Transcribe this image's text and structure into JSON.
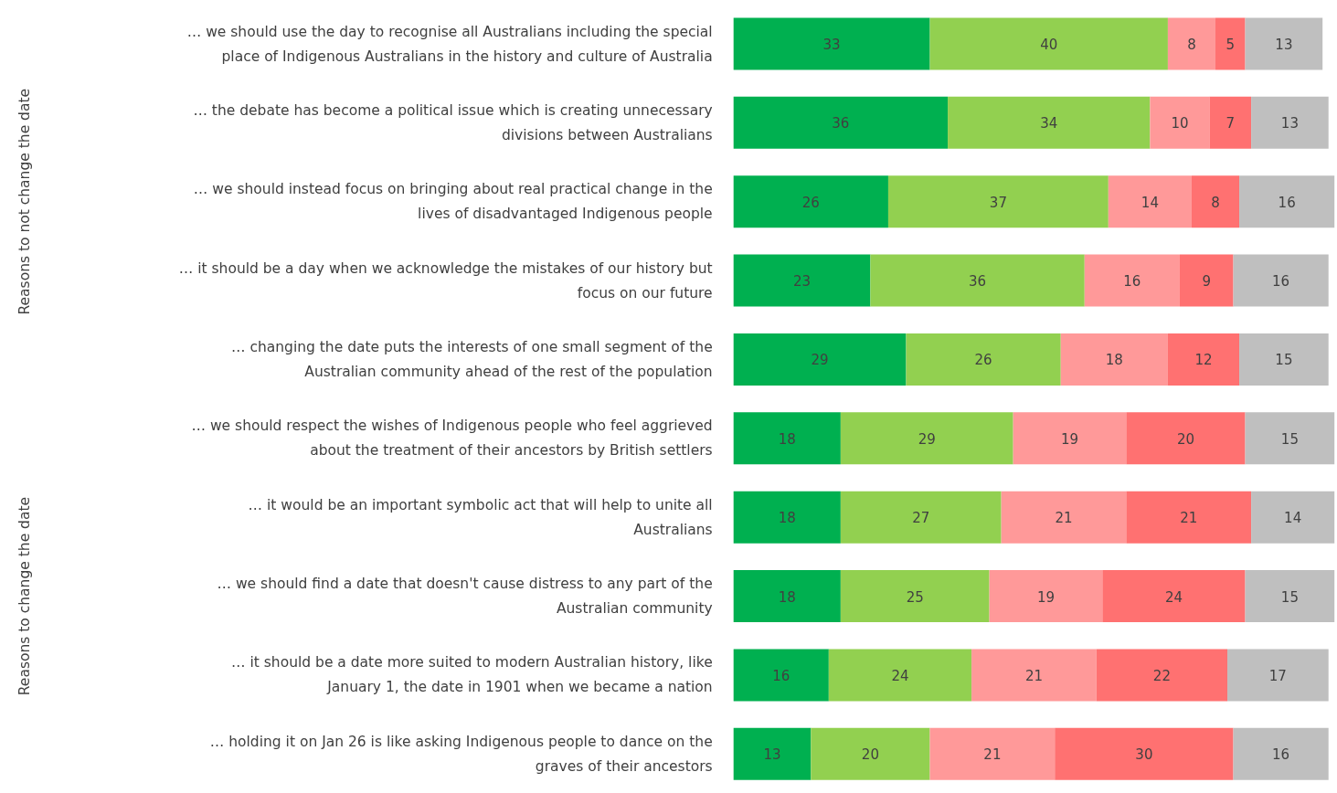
{
  "chart_data": {
    "type": "bar",
    "orientation": "horizontal",
    "stacked": true,
    "data_labels": true,
    "categories": [
      "… we should use the day to recognise all Australians including the special place of Indigenous Australians in the history and culture of Australia",
      "… the debate has become a political issue which is creating unnecessary divisions between Australians",
      "… we should instead focus on bringing about real practical change in the lives of disadvantaged Indigenous people",
      "… it should be a day when we acknowledge the mistakes of our history but focus on our future",
      "… changing the date puts the interests of one small segment of the Australian community ahead of the rest of the population",
      "… we should respect the wishes of Indigenous people who feel aggrieved about the treatment of their ancestors by British settlers",
      "… it would be an important symbolic act that will help to unite all Australians",
      "… we should find a date that doesn't cause distress to any part of the Australian community",
      "… it should be a date more suited to modern Australian history, like January 1, the date in 1901 when we became a nation",
      "… holding it on Jan 26 is like asking Indigenous people to dance on the graves of their ancestors"
    ],
    "series": [
      {
        "color": "#00b050",
        "values": [
          33,
          36,
          26,
          23,
          29,
          18,
          18,
          18,
          16,
          13
        ]
      },
      {
        "color": "#92d050",
        "values": [
          40,
          34,
          37,
          36,
          26,
          29,
          27,
          25,
          24,
          20
        ]
      },
      {
        "color": "#ff9999",
        "values": [
          8,
          10,
          14,
          16,
          18,
          19,
          21,
          19,
          21,
          21
        ]
      },
      {
        "color": "#ff7171",
        "values": [
          5,
          7,
          8,
          9,
          12,
          20,
          21,
          24,
          22,
          30
        ]
      },
      {
        "color": "#bfbfbf",
        "values": [
          13,
          13,
          16,
          16,
          15,
          15,
          14,
          15,
          17,
          16
        ]
      }
    ],
    "annotations": [
      "Reasons to not change the date",
      "Reasons to change the date"
    ]
  }
}
